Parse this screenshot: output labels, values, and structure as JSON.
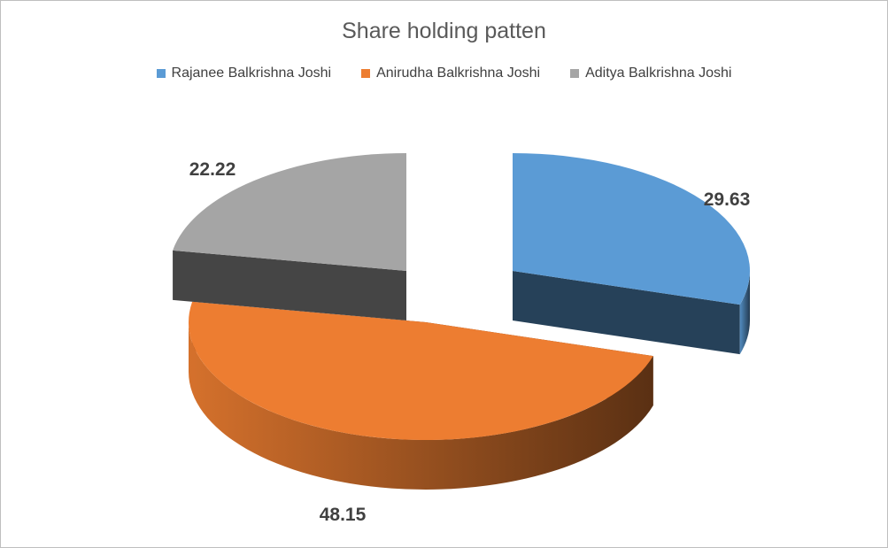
{
  "chart_data": {
    "type": "pie",
    "title": "Share holding patten",
    "categories": [
      "Rajanee Balkrishna Joshi",
      "Anirudha Balkrishna Joshi",
      "Aditya Balkrishna Joshi"
    ],
    "values": [
      29.63,
      48.15,
      22.22
    ],
    "data_labels": [
      "29.63",
      "48.15",
      "22.22"
    ],
    "colors": [
      "#5b9bd5",
      "#ed7d31",
      "#a5a5a5"
    ],
    "legend_position": "top",
    "style": "3d-exploded"
  }
}
